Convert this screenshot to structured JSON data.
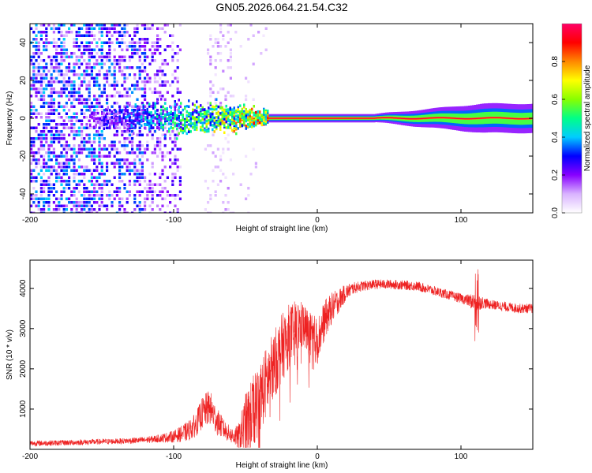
{
  "title": "GN05.2026.064.21.54.C32",
  "chart_data": [
    {
      "type": "heatmap",
      "xlabel": "Height of straight line (km)",
      "ylabel": "Frequency (Hz)",
      "xlim": [
        -200,
        150
      ],
      "ylim": [
        -50,
        50
      ],
      "xticks": [
        -200,
        -100,
        0,
        100
      ],
      "yticks": [
        -40,
        -20,
        0,
        20,
        40
      ],
      "colorbar": {
        "label": "Normalized spectral amplitude",
        "range": [
          0,
          1
        ],
        "ticks": [
          0.0,
          0.2,
          0.4,
          0.6,
          0.8
        ],
        "colormap": [
          "#ffffff",
          "#d9b3ff",
          "#8800ff",
          "#0000ff",
          "#00ccff",
          "#00ff88",
          "#88ff00",
          "#ffff00",
          "#ff8800",
          "#ff0000",
          "#ff0066"
        ]
      },
      "features": {
        "noise_region_x": [
          -200,
          -95
        ],
        "sparse_noise_region_x": [
          -95,
          -58
        ],
        "signal_band_x": [
          -35,
          150
        ],
        "signal_band_frequency_hz": 0,
        "broadening_start_x": 40
      }
    },
    {
      "type": "line",
      "xlabel": "Height of straight line (km)",
      "ylabel": "SNR (10 * v/v)",
      "xlim": [
        -200,
        150
      ],
      "ylim": [
        0,
        4700
      ],
      "xticks": [
        -200,
        -100,
        0,
        100
      ],
      "yticks": [
        1000,
        2000,
        3000,
        4000
      ],
      "color": "#ee2222",
      "series": [
        {
          "name": "SNR",
          "x": [
            -200,
            -180,
            -160,
            -140,
            -120,
            -110,
            -100,
            -95,
            -90,
            -85,
            -80,
            -75,
            -70,
            -65,
            -60,
            -55,
            -50,
            -45,
            -40,
            -35,
            -30,
            -25,
            -20,
            -15,
            -10,
            -5,
            0,
            5,
            10,
            15,
            20,
            25,
            30,
            40,
            50,
            60,
            70,
            80,
            90,
            100,
            105,
            110,
            115,
            120,
            130,
            140,
            150
          ],
          "y": [
            150,
            160,
            180,
            200,
            230,
            270,
            320,
            380,
            450,
            600,
            900,
            1050,
            700,
            500,
            350,
            300,
            600,
            900,
            1300,
            1700,
            2100,
            2500,
            2800,
            3000,
            3100,
            2800,
            2700,
            3200,
            3500,
            3700,
            3900,
            4000,
            4050,
            4100,
            4100,
            4080,
            4050,
            3950,
            3850,
            3750,
            3700,
            3650,
            3650,
            3600,
            3550,
            3500,
            3500
          ],
          "spread": [
            70,
            70,
            70,
            70,
            80,
            100,
            150,
            200,
            250,
            300,
            400,
            450,
            350,
            250,
            200,
            300,
            800,
            900,
            900,
            900,
            850,
            850,
            800,
            700,
            600,
            600,
            600,
            500,
            400,
            300,
            200,
            150,
            130,
            120,
            120,
            120,
            120,
            120,
            120,
            120,
            150,
            250,
            150,
            120,
            120,
            120,
            120
          ]
        }
      ]
    }
  ]
}
